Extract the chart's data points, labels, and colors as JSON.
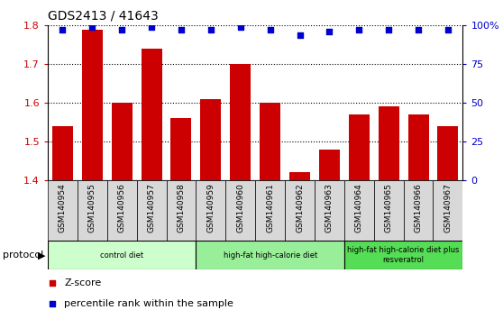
{
  "title": "GDS2413 / 41643",
  "samples": [
    "GSM140954",
    "GSM140955",
    "GSM140956",
    "GSM140957",
    "GSM140958",
    "GSM140959",
    "GSM140960",
    "GSM140961",
    "GSM140962",
    "GSM140963",
    "GSM140964",
    "GSM140965",
    "GSM140966",
    "GSM140967"
  ],
  "zscore": [
    1.54,
    1.79,
    1.6,
    1.74,
    1.56,
    1.61,
    1.7,
    1.6,
    1.42,
    1.48,
    1.57,
    1.59,
    1.57,
    1.54
  ],
  "percentile": [
    97,
    99,
    97,
    99,
    97,
    97,
    99,
    97,
    94,
    96,
    97,
    97,
    97,
    97
  ],
  "ylim_left": [
    1.4,
    1.8
  ],
  "ylim_right": [
    0,
    100
  ],
  "yticks_left": [
    1.4,
    1.5,
    1.6,
    1.7,
    1.8
  ],
  "yticks_right": [
    0,
    25,
    50,
    75,
    100
  ],
  "bar_color": "#cc0000",
  "dot_color": "#0000cc",
  "bg_color": "#ffffff",
  "xticklabel_bg": "#d8d8d8",
  "groups": [
    {
      "label": "control diet",
      "start": 0,
      "end": 4,
      "color": "#ccffcc"
    },
    {
      "label": "high-fat high-calorie diet",
      "start": 5,
      "end": 9,
      "color": "#99ee99"
    },
    {
      "label": "high-fat high-calorie diet plus\nresveratrol",
      "start": 10,
      "end": 13,
      "color": "#55dd55"
    }
  ],
  "protocol_label": "protocol",
  "legend": [
    {
      "color": "#cc0000",
      "label": "Z-score"
    },
    {
      "color": "#0000cc",
      "label": "percentile rank within the sample"
    }
  ]
}
